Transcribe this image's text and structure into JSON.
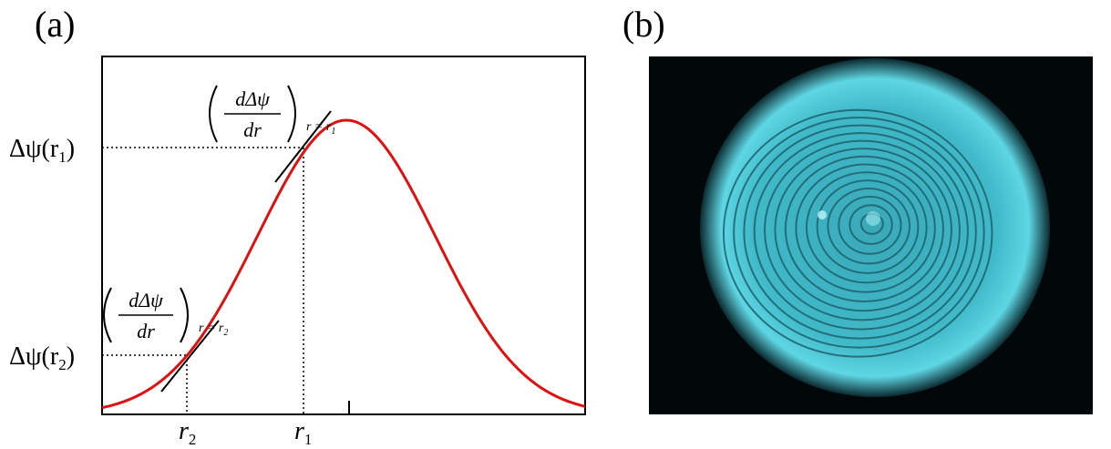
{
  "panels": [
    {
      "label": "(a)"
    },
    {
      "label": "(b)"
    }
  ],
  "diagram": {
    "y_labels": [
      {
        "text": "Δψ(r",
        "sub": "1",
        "close": ")"
      },
      {
        "text": "Δψ(r",
        "sub": "2",
        "close": ")"
      }
    ],
    "x_labels": [
      {
        "text": "r",
        "sub": "2"
      },
      {
        "text": "r",
        "sub": "1"
      }
    ],
    "slope_labels": [
      {
        "numerator": "dΔψ",
        "denominator": "dr",
        "condition": "r = r",
        "sub": "1"
      },
      {
        "numerator": "dΔψ",
        "denominator": "dr",
        "condition": "r = r",
        "sub": "2"
      }
    ]
  }
}
